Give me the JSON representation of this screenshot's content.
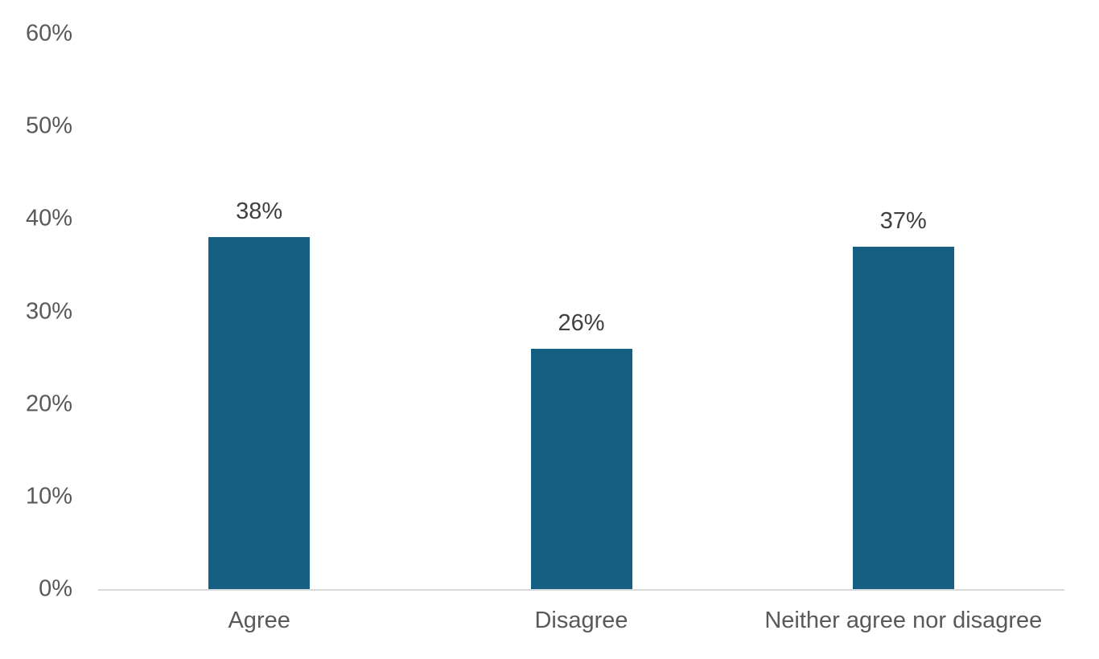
{
  "chart_data": {
    "type": "bar",
    "title": "",
    "xlabel": "",
    "ylabel": "",
    "categories": [
      "Agree",
      "Disagree",
      "Neither agree nor disagree"
    ],
    "values": [
      38,
      26,
      37
    ],
    "data_labels": [
      "38%",
      "26%",
      "37%"
    ],
    "y_ticks": [
      "0%",
      "10%",
      "20%",
      "30%",
      "40%",
      "50%",
      "60%"
    ],
    "y_tick_values": [
      0,
      10,
      20,
      30,
      40,
      50,
      60
    ],
    "ylim": [
      0,
      60
    ],
    "grid": "off",
    "legend": "none",
    "colors": {
      "bar": "#156082",
      "axis_line": "#d9d9d9",
      "tick_label": "#595959",
      "data_label": "#404040",
      "background": "#ffffff"
    }
  }
}
